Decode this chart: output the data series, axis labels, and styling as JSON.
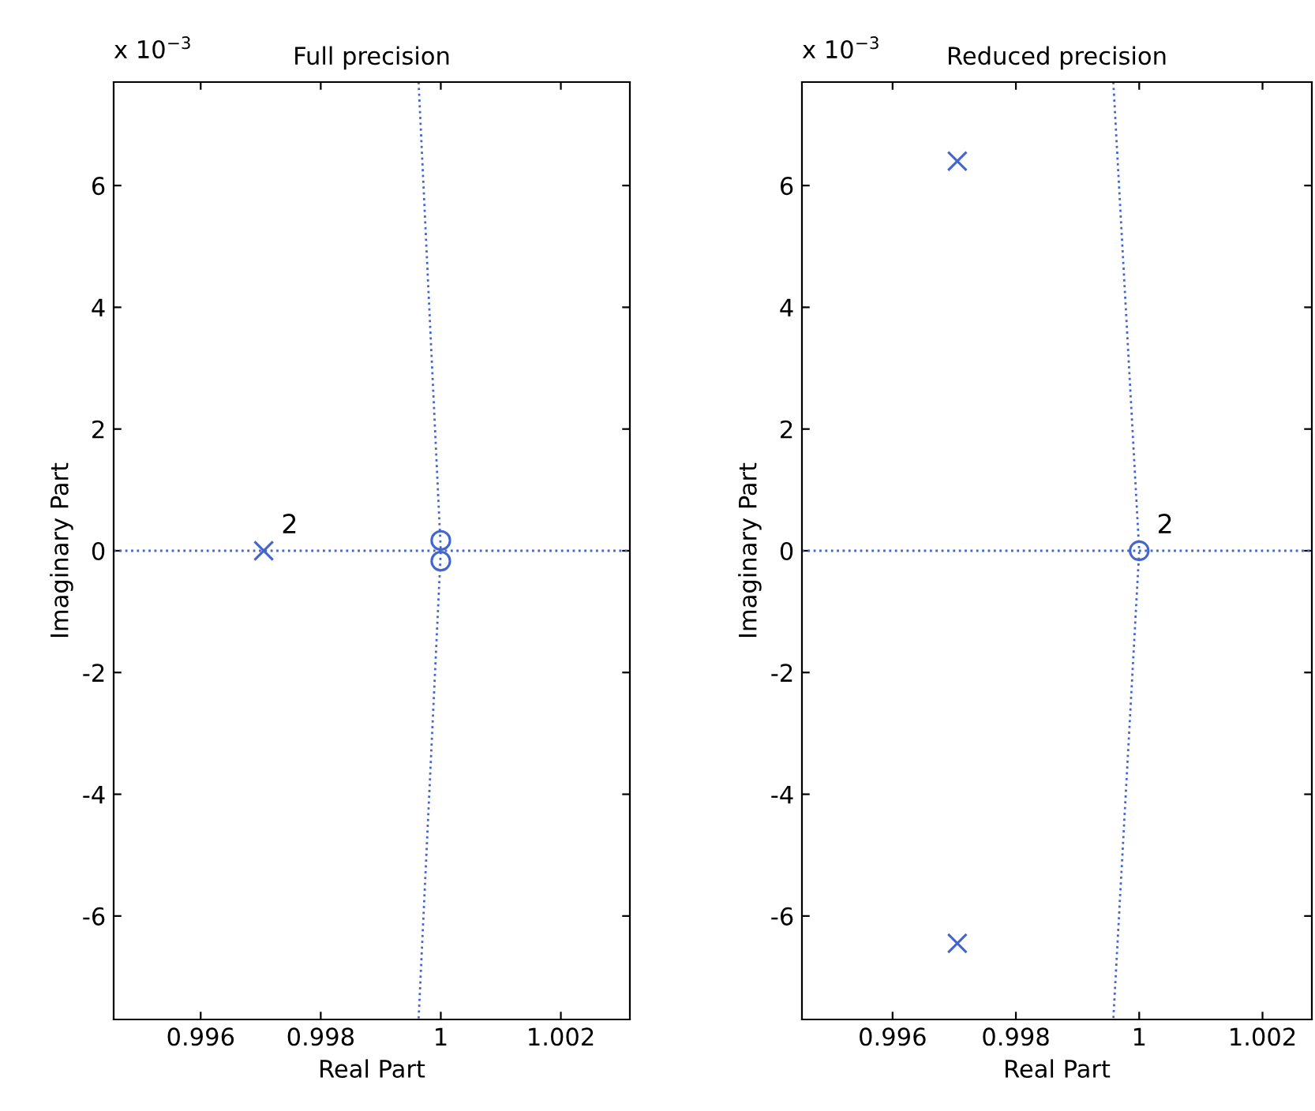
{
  "chart_data": [
    {
      "type": "scatter",
      "title": "Full precision",
      "xlabel": "Real Part",
      "ylabel": "Imaginary Part",
      "annotations": [
        "x 10$^{−3}$",
        {
          "text": "2",
          "x": 0.99705,
          "y": 0
        }
      ],
      "series": [
        {
          "type": "line",
          "color": "#4466cc",
          "line_style": "dotted",
          "marker": "none",
          "x": [
            0.99963,
            1,
            0.99963
          ],
          "values": [
            7.7,
            0,
            -7.7
          ]
        },
        {
          "type": "line",
          "color": "#4466cc",
          "line_style": "dotted",
          "marker": "none",
          "x": [
            0.99455,
            1.00315
          ],
          "values": [
            0,
            0
          ]
        },
        {
          "color": "#4466cc",
          "marker": "cross",
          "x": [
            0.99705
          ],
          "values": [
            0
          ]
        },
        {
          "color": "#4466cc",
          "marker": "circle",
          "x": [
            1,
            1
          ],
          "values": [
            0.17,
            -0.17
          ]
        }
      ],
      "xlim": [
        0.99455,
        1.00315
      ],
      "xticks": [
        0.996,
        0.998,
        1,
        1.002
      ],
      "ylim": [
        -7.7,
        7.7
      ],
      "yticks": [
        -6,
        -4,
        -2,
        0,
        2,
        4,
        6
      ],
      "grid": false,
      "legend": false
    },
    {
      "type": "scatter",
      "title": "Reduced precision",
      "xlabel": "Real Part",
      "ylabel": "Imaginary Part",
      "annotations": [
        "x 10$^{−3}$",
        {
          "text": "2",
          "x": 1,
          "y": 0
        }
      ],
      "series": [
        {
          "type": "line",
          "color": "#4466cc",
          "line_style": "dotted",
          "marker": "none",
          "x": [
            0.99958,
            1,
            0.99958
          ],
          "values": [
            7.7,
            0,
            -7.7
          ]
        },
        {
          "type": "line",
          "color": "#4466cc",
          "line_style": "dotted",
          "marker": "none",
          "x": [
            0.99453,
            1.0028
          ],
          "values": [
            0,
            0
          ]
        },
        {
          "color": "#4466cc",
          "marker": "cross",
          "x": [
            0.99705,
            0.99705
          ],
          "values": [
            6.4,
            -6.45
          ]
        },
        {
          "color": "#4466cc",
          "marker": "circle",
          "x": [
            1
          ],
          "values": [
            0
          ]
        }
      ],
      "xlim": [
        0.99453,
        1.0028
      ],
      "xticks": [
        0.996,
        0.998,
        1,
        1.002
      ],
      "ylim": [
        -7.7,
        7.7
      ],
      "yticks": [
        -6,
        -4,
        -2,
        0,
        2,
        4,
        6
      ],
      "grid": false,
      "legend": false
    }
  ]
}
